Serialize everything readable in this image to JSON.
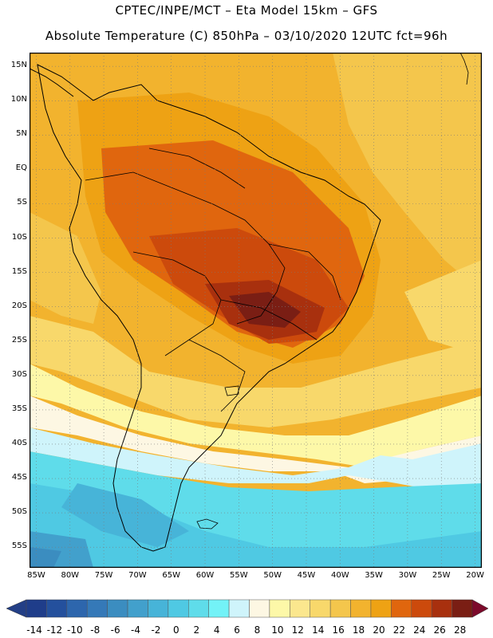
{
  "header": {
    "title_line1": "CPTEC/INPE/MCT –  Eta Model 15km – GFS",
    "title_line2": "Absolute Temperature (C) 850hPa – 03/10/2020 12UTC fct=96h"
  },
  "map": {
    "lat_labels": [
      "15N",
      "10N",
      "5N",
      "EQ",
      "5S",
      "10S",
      "15S",
      "20S",
      "25S",
      "30S",
      "35S",
      "40S",
      "45S",
      "50S",
      "55S"
    ],
    "lon_labels": [
      "85W",
      "80W",
      "75W",
      "70W",
      "65W",
      "60W",
      "55W",
      "50W",
      "45W",
      "40W",
      "35W",
      "30W",
      "25W",
      "20W"
    ],
    "lat_values": [
      15,
      10,
      5,
      0,
      -5,
      -10,
      -15,
      -20,
      -25,
      -30,
      -35,
      -40,
      -45,
      -50,
      -55
    ],
    "lon_values": [
      -85,
      -80,
      -75,
      -70,
      -65,
      -60,
      -55,
      -50,
      -45,
      -40,
      -35,
      -30,
      -25,
      -20
    ],
    "lat_range": [
      -58,
      17
    ],
    "lon_range": [
      -86,
      -19
    ],
    "gridlines": "dotted",
    "variable": "Absolute Temperature (C) 850hPa"
  },
  "colorbar": {
    "labels": [
      "-14",
      "-12",
      "-10",
      "-8",
      "-6",
      "-4",
      "-2",
      "0",
      "2",
      "4",
      "6",
      "8",
      "10",
      "12",
      "14",
      "16",
      "18",
      "20",
      "22",
      "24",
      "26",
      "28"
    ],
    "colors": [
      "#1f3d8a",
      "#24509d",
      "#2d66ad",
      "#3579b8",
      "#3b8dc0",
      "#42a0cc",
      "#47b4d8",
      "#4fc9e3",
      "#5fdcea",
      "#73f2f7",
      "#cff4fb",
      "#fdf7e3",
      "#fdf8a8",
      "#fbe78e",
      "#f8d86b",
      "#f4c64c",
      "#f2b32e",
      "#eea214",
      "#e0660e",
      "#cc4a0c",
      "#a8300e",
      "#7a1e14"
    ],
    "low_arrow_color": "#233f86",
    "high_arrow_color": "#7c0a2b"
  },
  "palette": {
    "background_field": "#f2b32e",
    "warm_core": "#a8300e",
    "cold_south": "#47b4d8"
  }
}
